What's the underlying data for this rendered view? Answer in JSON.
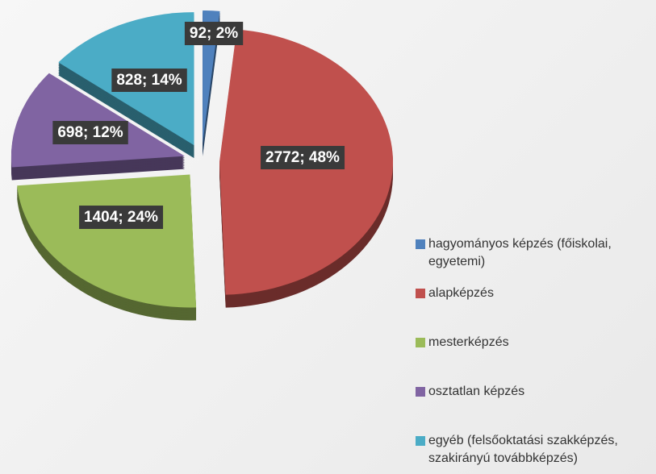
{
  "chart_data": {
    "type": "pie",
    "categories": [
      "hagyományos képzés (főiskolai, egyetemi)",
      "alapképzés",
      "mesterképzés",
      "osztatlan képzés",
      "egyéb (felsőoktatási szakképzés, szakirányú továbbképzés)"
    ],
    "values": [
      92,
      2772,
      1404,
      698,
      828
    ],
    "value_labels": [
      "92; 2%",
      "2772; 48%",
      "1404; 24%",
      "698; 12%",
      "828; 14%"
    ],
    "colors": [
      "#4f81bd",
      "#c0504d",
      "#9bbb59",
      "#8064a2",
      "#4bacc6"
    ],
    "legend": "right"
  }
}
